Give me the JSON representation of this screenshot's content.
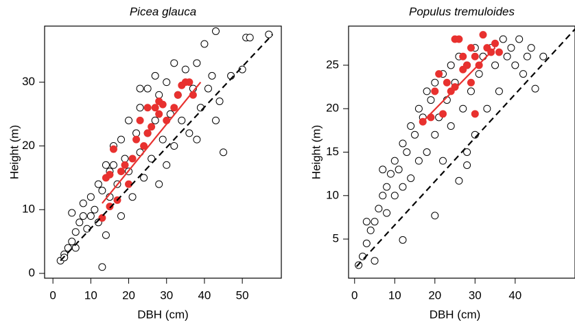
{
  "chart_data": [
    {
      "type": "scatter",
      "title": "Picea glauca",
      "x_label": "DBH (cm)",
      "y_label": "Height (m)",
      "xlim": [
        -2.2,
        60.3
      ],
      "ylim": [
        -0.75,
        38.8
      ],
      "xticks": [
        0,
        10,
        20,
        30,
        40,
        50
      ],
      "yticks": [
        0,
        10,
        20,
        30
      ],
      "series": [
        {
          "color": "#000000",
          "marker": "open",
          "x": [
            2,
            3,
            4,
            5,
            3,
            6,
            7,
            8,
            6,
            9,
            10,
            10,
            11,
            12,
            12,
            13,
            14,
            15,
            15,
            16,
            17,
            18,
            18,
            19,
            20,
            20,
            21,
            22,
            23,
            23,
            24,
            25,
            25,
            26,
            27,
            28,
            28,
            29,
            30,
            30,
            31,
            32,
            32,
            33,
            34,
            35,
            36,
            37,
            38,
            39,
            40,
            41,
            42,
            43,
            43,
            44,
            45,
            47,
            50,
            51,
            52,
            57,
            13,
            5,
            8,
            14,
            38,
            27,
            23,
            16
          ],
          "values": [
            2,
            3,
            4,
            5,
            2.5,
            6.5,
            8,
            9,
            4,
            7,
            12,
            9,
            10,
            14,
            8,
            13,
            17,
            12,
            16,
            20,
            14,
            21,
            9,
            18,
            16,
            24,
            12,
            22,
            19,
            26,
            15,
            22,
            29,
            18,
            24,
            14,
            28,
            21,
            30,
            17,
            25,
            33,
            20,
            28,
            24,
            32,
            22,
            29,
            33,
            26,
            36,
            29,
            31,
            38,
            24,
            27,
            19,
            31,
            32,
            37,
            37,
            37.5,
            1,
            9.5,
            11,
            6,
            21,
            31,
            29,
            17
          ]
        },
        {
          "color": "#e8312f",
          "marker": "filled",
          "x": [
            13,
            14,
            15,
            15,
            16,
            17,
            18,
            19,
            20,
            21,
            22,
            23,
            24,
            25,
            25,
            26,
            27,
            28,
            28,
            29,
            30,
            32,
            33,
            34,
            35,
            36,
            37
          ],
          "values": [
            8.7,
            15,
            15.5,
            10.5,
            19.5,
            11.5,
            16,
            17,
            14,
            18,
            21,
            24,
            20,
            22,
            26,
            23,
            26,
            25,
            27,
            26.5,
            24,
            26,
            28,
            29.5,
            30,
            30,
            28
          ]
        },
        {
          "type": "line",
          "style": "dashed",
          "color": "#000000",
          "x": [
            2,
            58
          ],
          "values": [
            2,
            37.5
          ]
        },
        {
          "type": "line",
          "style": "solid",
          "color": "#e8312f",
          "x": [
            13,
            39
          ],
          "values": [
            11,
            30
          ]
        }
      ]
    },
    {
      "type": "scatter",
      "title": "Populus tremuloides",
      "x_label": "DBH (cm)",
      "y_label": "Height (m)",
      "xlim": [
        -1.5,
        54.9
      ],
      "ylim": [
        0.5,
        29.5
      ],
      "xticks": [
        0,
        10,
        20,
        30,
        40
      ],
      "yticks": [
        5,
        10,
        15,
        20,
        25
      ],
      "series": [
        {
          "color": "#000000",
          "marker": "open",
          "x": [
            1,
            2,
            3,
            4,
            5,
            6,
            7,
            8,
            8,
            9,
            10,
            10,
            11,
            12,
            12,
            13,
            14,
            14,
            15,
            16,
            16,
            17,
            18,
            18,
            19,
            20,
            20,
            21,
            22,
            22,
            23,
            24,
            24,
            25,
            26,
            26,
            27,
            28,
            28,
            29,
            30,
            30,
            31,
            32,
            33,
            34,
            35,
            36,
            37,
            38,
            39,
            40,
            41,
            42,
            43,
            44,
            45,
            47,
            20,
            12,
            5,
            3,
            7,
            28
          ],
          "values": [
            2,
            3,
            4.5,
            6,
            7,
            8.5,
            10,
            11,
            8,
            12.5,
            14,
            10,
            13,
            16,
            11,
            15,
            18,
            12,
            17,
            20,
            14,
            19,
            22,
            15,
            21,
            23,
            17,
            19,
            24,
            14,
            21,
            25,
            18,
            23,
            26,
            11.7,
            20,
            25,
            15,
            22,
            27,
            17,
            24,
            26,
            20,
            27,
            25,
            22,
            28,
            26,
            27,
            25,
            28,
            24,
            26,
            27,
            22.3,
            26,
            7.7,
            4.9,
            2.5,
            7,
            13,
            13.5
          ]
        },
        {
          "color": "#e8312f",
          "marker": "filled",
          "x": [
            17,
            19,
            20,
            21,
            22,
            23,
            24,
            25,
            25,
            26,
            27,
            27,
            28,
            29,
            29,
            30,
            30,
            31,
            32,
            33,
            34,
            35,
            36
          ],
          "values": [
            18.5,
            19,
            22,
            24,
            19.4,
            23,
            22,
            28,
            22.5,
            28,
            24.5,
            26,
            25,
            27,
            23,
            26,
            19.4,
            25,
            28.5,
            27,
            26.5,
            27.5,
            26.5
          ]
        },
        {
          "type": "line",
          "style": "dashed",
          "color": "#000000",
          "x": [
            0.5,
            55
          ],
          "values": [
            1.84,
            29.2
          ]
        },
        {
          "type": "line",
          "style": "solid",
          "color": "#e8312f",
          "x": [
            17,
            35
          ],
          "values": [
            18.5,
            27
          ]
        }
      ]
    }
  ]
}
